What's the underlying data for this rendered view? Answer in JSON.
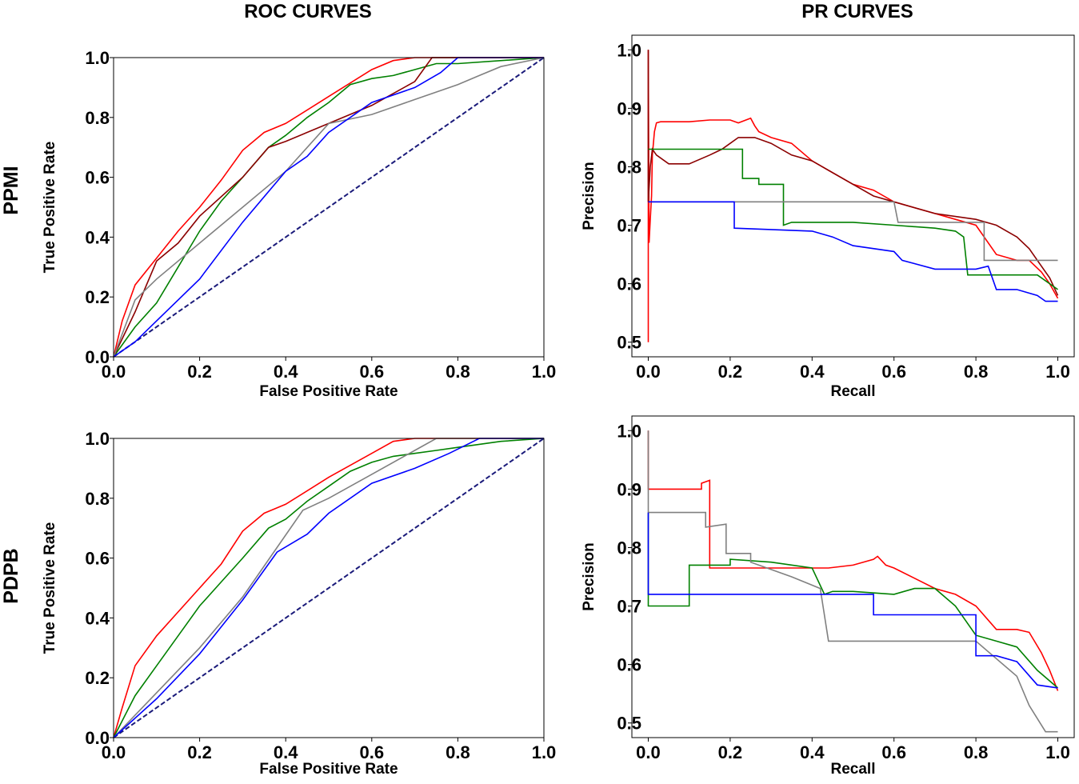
{
  "figure": {
    "column_titles": [
      "ROC CURVES",
      "PR CURVES"
    ],
    "row_titles": [
      "PPMI",
      "PDPB"
    ]
  },
  "chart_data": [
    {
      "id": "roc-ppmi",
      "type": "line",
      "title": "",
      "xlabel": "False Positive Rate",
      "ylabel": "True Positive Rate",
      "xlim": [
        0,
        1
      ],
      "ylim": [
        0,
        1
      ],
      "xticks": [
        "0.0",
        "0.2",
        "0.4",
        "0.6",
        "0.8",
        "1.0"
      ],
      "yticks": [
        "0.0",
        "0.2",
        "0.4",
        "0.6",
        "0.8",
        "1.0"
      ],
      "grid": false,
      "series": [
        {
          "color": "#1a1a7a",
          "dash": true,
          "x": [
            0,
            1
          ],
          "y": [
            0,
            1
          ]
        },
        {
          "color": "#ff0000",
          "x": [
            0,
            0.02,
            0.05,
            0.1,
            0.15,
            0.2,
            0.25,
            0.3,
            0.35,
            0.4,
            0.5,
            0.6,
            0.65,
            0.7,
            0.75,
            0.8,
            1.0
          ],
          "y": [
            0,
            0.12,
            0.24,
            0.33,
            0.42,
            0.5,
            0.59,
            0.69,
            0.75,
            0.78,
            0.87,
            0.96,
            0.99,
            1.0,
            1.0,
            1.0,
            1.0
          ]
        },
        {
          "color": "#008000",
          "x": [
            0,
            0.05,
            0.1,
            0.15,
            0.2,
            0.25,
            0.3,
            0.36,
            0.4,
            0.45,
            0.5,
            0.55,
            0.6,
            0.65,
            0.7,
            0.75,
            0.8,
            1.0
          ],
          "y": [
            0,
            0.1,
            0.18,
            0.3,
            0.42,
            0.52,
            0.6,
            0.7,
            0.74,
            0.8,
            0.85,
            0.91,
            0.93,
            0.94,
            0.96,
            0.98,
            0.98,
            1.0
          ]
        },
        {
          "color": "#8b0000",
          "x": [
            0,
            0.05,
            0.1,
            0.15,
            0.2,
            0.3,
            0.36,
            0.4,
            0.5,
            0.6,
            0.7,
            0.74,
            0.8,
            1.0
          ],
          "y": [
            0,
            0.15,
            0.32,
            0.38,
            0.47,
            0.6,
            0.7,
            0.72,
            0.78,
            0.84,
            0.92,
            1.0,
            1.0,
            1.0
          ]
        },
        {
          "color": "#808080",
          "x": [
            0,
            0.05,
            0.1,
            0.2,
            0.3,
            0.4,
            0.5,
            0.6,
            0.7,
            0.8,
            0.85,
            0.9,
            1.0
          ],
          "y": [
            0,
            0.19,
            0.26,
            0.38,
            0.5,
            0.62,
            0.78,
            0.81,
            0.86,
            0.91,
            0.94,
            0.97,
            1.0
          ]
        },
        {
          "color": "#0000ff",
          "x": [
            0,
            0.05,
            0.1,
            0.2,
            0.3,
            0.4,
            0.45,
            0.5,
            0.6,
            0.7,
            0.76,
            0.8,
            0.9,
            1.0
          ],
          "y": [
            0,
            0.05,
            0.12,
            0.26,
            0.45,
            0.62,
            0.67,
            0.75,
            0.85,
            0.9,
            0.95,
            1.0,
            1.0,
            1.0
          ]
        }
      ]
    },
    {
      "id": "pr-ppmi",
      "type": "line",
      "title": "",
      "xlabel": "Recall",
      "ylabel": "Precision",
      "xlim": [
        -0.04,
        1.04
      ],
      "ylim": [
        0.475,
        1.025
      ],
      "xticks": [
        "0.0",
        "0.2",
        "0.4",
        "0.6",
        "0.8",
        "1.0"
      ],
      "yticks": [
        "0.5",
        "0.6",
        "0.7",
        "0.8",
        "0.9",
        "1.0"
      ],
      "grid": false,
      "series": [
        {
          "color": "#ff0000",
          "x": [
            0.0,
            0.0,
            0.002,
            0.005,
            0.008,
            0.01,
            0.015,
            0.02,
            0.03,
            0.05,
            0.1,
            0.15,
            0.2,
            0.22,
            0.25,
            0.26,
            0.27,
            0.3,
            0.35,
            0.4,
            0.45,
            0.5,
            0.55,
            0.6,
            0.65,
            0.7,
            0.75,
            0.8,
            0.85,
            0.9,
            0.93,
            0.96,
            0.98,
            1.0
          ],
          "y": [
            0.5,
            1.0,
            0.67,
            0.71,
            0.75,
            0.82,
            0.86,
            0.875,
            0.877,
            0.877,
            0.877,
            0.88,
            0.88,
            0.875,
            0.883,
            0.87,
            0.86,
            0.85,
            0.84,
            0.81,
            0.79,
            0.77,
            0.76,
            0.74,
            0.73,
            0.72,
            0.71,
            0.7,
            0.65,
            0.64,
            0.64,
            0.62,
            0.6,
            0.575
          ]
        },
        {
          "color": "#8b0000",
          "x": [
            0.0,
            0.0,
            0.005,
            0.01,
            0.02,
            0.05,
            0.1,
            0.15,
            0.18,
            0.2,
            0.22,
            0.26,
            0.3,
            0.35,
            0.4,
            0.45,
            0.5,
            0.55,
            0.6,
            0.65,
            0.7,
            0.75,
            0.8,
            0.85,
            0.9,
            0.93,
            0.96,
            0.98,
            1.0
          ],
          "y": [
            1.0,
            0.74,
            0.8,
            0.83,
            0.82,
            0.805,
            0.805,
            0.82,
            0.83,
            0.84,
            0.85,
            0.85,
            0.84,
            0.82,
            0.81,
            0.79,
            0.77,
            0.75,
            0.74,
            0.73,
            0.72,
            0.715,
            0.71,
            0.7,
            0.68,
            0.66,
            0.63,
            0.61,
            0.58
          ]
        },
        {
          "color": "#008000",
          "x": [
            0.0,
            0.23,
            0.23,
            0.27,
            0.27,
            0.33,
            0.33,
            0.35,
            0.4,
            0.5,
            0.6,
            0.7,
            0.75,
            0.77,
            0.78,
            0.8,
            0.85,
            0.9,
            0.95,
            1.0
          ],
          "y": [
            0.83,
            0.83,
            0.78,
            0.78,
            0.77,
            0.77,
            0.7,
            0.705,
            0.705,
            0.705,
            0.7,
            0.695,
            0.69,
            0.68,
            0.615,
            0.615,
            0.615,
            0.615,
            0.615,
            0.59
          ]
        },
        {
          "color": "#808080",
          "x": [
            0.0,
            0.6,
            0.61,
            0.8,
            0.82,
            0.82,
            0.9,
            1.0
          ],
          "y": [
            0.74,
            0.74,
            0.705,
            0.705,
            0.705,
            0.64,
            0.64,
            0.64
          ]
        },
        {
          "color": "#0000ff",
          "x": [
            0.0,
            0.21,
            0.21,
            0.4,
            0.45,
            0.5,
            0.6,
            0.62,
            0.7,
            0.8,
            0.83,
            0.85,
            0.9,
            0.95,
            0.97,
            1.0
          ],
          "y": [
            0.74,
            0.74,
            0.695,
            0.69,
            0.68,
            0.665,
            0.655,
            0.64,
            0.625,
            0.625,
            0.63,
            0.59,
            0.59,
            0.58,
            0.57,
            0.57
          ]
        }
      ]
    },
    {
      "id": "roc-pdpb",
      "type": "line",
      "title": "",
      "xlabel": "False Positive Rate",
      "ylabel": "True Positive Rate",
      "xlim": [
        0,
        1
      ],
      "ylim": [
        0,
        1
      ],
      "xticks": [
        "0.0",
        "0.2",
        "0.4",
        "0.6",
        "0.8",
        "1.0"
      ],
      "yticks": [
        "0.0",
        "0.2",
        "0.4",
        "0.6",
        "0.8",
        "1.0"
      ],
      "grid": false,
      "series": [
        {
          "color": "#1a1a7a",
          "dash": true,
          "x": [
            0,
            1
          ],
          "y": [
            0,
            1
          ]
        },
        {
          "color": "#ff0000",
          "x": [
            0,
            0.02,
            0.05,
            0.1,
            0.15,
            0.2,
            0.25,
            0.3,
            0.35,
            0.4,
            0.5,
            0.6,
            0.65,
            0.7,
            0.75,
            0.8,
            1.0
          ],
          "y": [
            0,
            0.1,
            0.24,
            0.34,
            0.42,
            0.5,
            0.58,
            0.69,
            0.75,
            0.78,
            0.87,
            0.95,
            0.99,
            1.0,
            1.0,
            1.0,
            1.0
          ]
        },
        {
          "color": "#008000",
          "x": [
            0,
            0.05,
            0.1,
            0.15,
            0.2,
            0.25,
            0.3,
            0.36,
            0.4,
            0.45,
            0.5,
            0.55,
            0.6,
            0.65,
            0.7,
            0.75,
            0.8,
            0.9,
            1.0
          ],
          "y": [
            0,
            0.14,
            0.24,
            0.34,
            0.44,
            0.52,
            0.6,
            0.7,
            0.73,
            0.79,
            0.84,
            0.89,
            0.92,
            0.94,
            0.95,
            0.96,
            0.97,
            0.99,
            1.0
          ]
        },
        {
          "color": "#808080",
          "x": [
            0,
            0.1,
            0.2,
            0.3,
            0.44,
            0.5,
            0.6,
            0.7,
            0.75,
            0.8,
            1.0
          ],
          "y": [
            0,
            0.15,
            0.3,
            0.47,
            0.76,
            0.8,
            0.88,
            0.96,
            1.0,
            1.0,
            1.0
          ]
        },
        {
          "color": "#0000ff",
          "x": [
            0,
            0.1,
            0.2,
            0.3,
            0.38,
            0.45,
            0.5,
            0.6,
            0.7,
            0.78,
            0.85,
            0.9,
            1.0
          ],
          "y": [
            0,
            0.13,
            0.28,
            0.46,
            0.62,
            0.68,
            0.75,
            0.85,
            0.9,
            0.95,
            1.0,
            1.0,
            1.0
          ]
        }
      ]
    },
    {
      "id": "pr-pdpb",
      "type": "line",
      "title": "",
      "xlabel": "Recall",
      "ylabel": "Precision",
      "xlim": [
        -0.04,
        1.04
      ],
      "ylim": [
        0.475,
        1.025
      ],
      "xticks": [
        "0.0",
        "0.2",
        "0.4",
        "0.6",
        "0.8",
        "1.0"
      ],
      "yticks": [
        "0.5",
        "0.6",
        "0.7",
        "0.8",
        "0.9",
        "1.0"
      ],
      "grid": false,
      "series": [
        {
          "color": "#ff0000",
          "x": [
            0.0,
            0.0,
            0.13,
            0.13,
            0.15,
            0.15,
            0.2,
            0.3,
            0.4,
            0.44,
            0.5,
            0.55,
            0.56,
            0.58,
            0.6,
            0.7,
            0.75,
            0.8,
            0.85,
            0.9,
            0.93,
            0.96,
            0.98,
            1.0
          ],
          "y": [
            1.0,
            0.9,
            0.9,
            0.91,
            0.915,
            0.765,
            0.765,
            0.765,
            0.765,
            0.765,
            0.77,
            0.78,
            0.785,
            0.77,
            0.765,
            0.73,
            0.72,
            0.7,
            0.66,
            0.66,
            0.655,
            0.62,
            0.59,
            0.555
          ]
        },
        {
          "color": "#008000",
          "x": [
            0.0,
            0.0,
            0.1,
            0.1,
            0.2,
            0.2,
            0.3,
            0.4,
            0.43,
            0.45,
            0.5,
            0.6,
            0.65,
            0.7,
            0.75,
            0.8,
            0.85,
            0.9,
            0.95,
            1.0
          ],
          "y": [
            0.86,
            0.7,
            0.7,
            0.77,
            0.77,
            0.78,
            0.775,
            0.765,
            0.72,
            0.725,
            0.725,
            0.72,
            0.73,
            0.73,
            0.7,
            0.65,
            0.64,
            0.63,
            0.59,
            0.56
          ]
        },
        {
          "color": "#808080",
          "x": [
            0.0,
            0.0,
            0.14,
            0.14,
            0.19,
            0.19,
            0.25,
            0.25,
            0.35,
            0.42,
            0.44,
            0.6,
            0.7,
            0.8,
            0.9,
            0.93,
            0.97,
            1.0
          ],
          "y": [
            1.0,
            0.86,
            0.86,
            0.835,
            0.84,
            0.79,
            0.79,
            0.775,
            0.75,
            0.73,
            0.64,
            0.64,
            0.64,
            0.64,
            0.58,
            0.53,
            0.485,
            0.485
          ]
        },
        {
          "color": "#0000ff",
          "x": [
            0.0,
            0.0,
            0.4,
            0.45,
            0.55,
            0.55,
            0.65,
            0.75,
            0.8,
            0.8,
            0.85,
            0.9,
            0.95,
            1.0
          ],
          "y": [
            0.86,
            0.72,
            0.72,
            0.72,
            0.72,
            0.685,
            0.685,
            0.685,
            0.685,
            0.615,
            0.615,
            0.605,
            0.565,
            0.56
          ]
        }
      ]
    }
  ]
}
